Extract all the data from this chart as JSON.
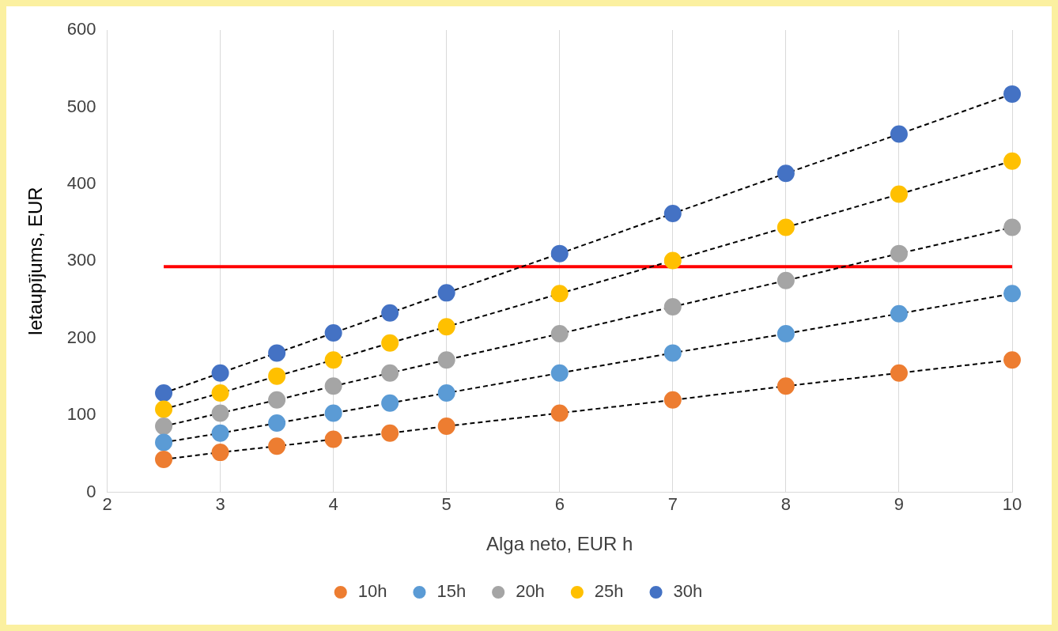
{
  "chart_data": {
    "type": "line",
    "xlabel": "Alga neto, EUR h",
    "ylabel": "Ietaupījums, EUR",
    "x": [
      2.5,
      3,
      3.5,
      4,
      4.5,
      5,
      6,
      7,
      8,
      9,
      10
    ],
    "xlim": [
      2,
      10
    ],
    "xticks": [
      2,
      3,
      4,
      5,
      6,
      7,
      8,
      9,
      10
    ],
    "ylim": [
      0,
      600
    ],
    "yticks": [
      0,
      100,
      200,
      300,
      400,
      500,
      600
    ],
    "grid": "x",
    "legend": "bottom",
    "marker": "circle",
    "line_style": "dashed",
    "series": [
      {
        "name": "10h",
        "color": "#ed7d31",
        "values": [
          43,
          52,
          60,
          69,
          77,
          86,
          103,
          120,
          138,
          155,
          172
        ]
      },
      {
        "name": "15h",
        "color": "#5b9bd5",
        "values": [
          65,
          77,
          90,
          103,
          116,
          129,
          155,
          181,
          206,
          232,
          258
        ]
      },
      {
        "name": "20h",
        "color": "#a5a5a5",
        "values": [
          86,
          103,
          120,
          138,
          155,
          172,
          206,
          241,
          275,
          310,
          344
        ]
      },
      {
        "name": "25h",
        "color": "#ffc000",
        "values": [
          108,
          129,
          151,
          172,
          194,
          215,
          258,
          301,
          344,
          387,
          430
        ]
      },
      {
        "name": "30h",
        "color": "#4472c4",
        "values": [
          129,
          155,
          181,
          207,
          233,
          259,
          310,
          362,
          414,
          465,
          517
        ]
      },
      {
        "color": "#ff0000",
        "x": [
          2.5,
          10
        ],
        "values": [
          293,
          293
        ],
        "marker": "none",
        "line_style": "solid"
      }
    ]
  }
}
